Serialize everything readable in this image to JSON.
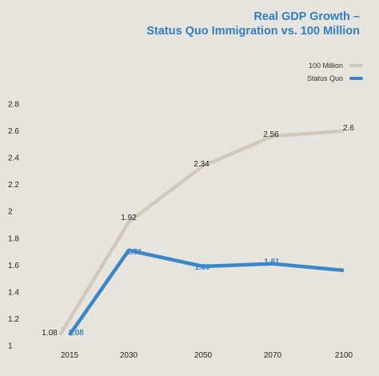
{
  "chart_data": {
    "type": "line",
    "title_lines": [
      "Real GDP Growth –",
      "Status Quo Immigration vs. 100 Million"
    ],
    "categories": [
      "2015",
      "2030",
      "2050",
      "2070",
      "2100"
    ],
    "ylim": [
      1,
      2.8
    ],
    "yticks": [
      "1",
      "1.2",
      "1.4",
      "1.6",
      "1.8",
      "2",
      "2.2",
      "2.4",
      "2.6",
      "2.8"
    ],
    "series": [
      {
        "name": "100 Million",
        "color": "#cfc8bc",
        "label_color": "#222222",
        "values": [
          1.08,
          1.92,
          2.34,
          2.56,
          2.6
        ],
        "labels": [
          "1.08",
          "1.92",
          "2.34",
          "2.56",
          "2.6"
        ]
      },
      {
        "name": "Status Quo",
        "color": "#3a86c6",
        "label_color": "#3a86c6",
        "values": [
          1.08,
          1.71,
          1.59,
          1.61,
          1.56
        ],
        "labels": [
          "1.08",
          "1.71",
          "1.59",
          "1.61",
          ""
        ]
      }
    ],
    "legend_position": "top-right",
    "grid": false
  }
}
